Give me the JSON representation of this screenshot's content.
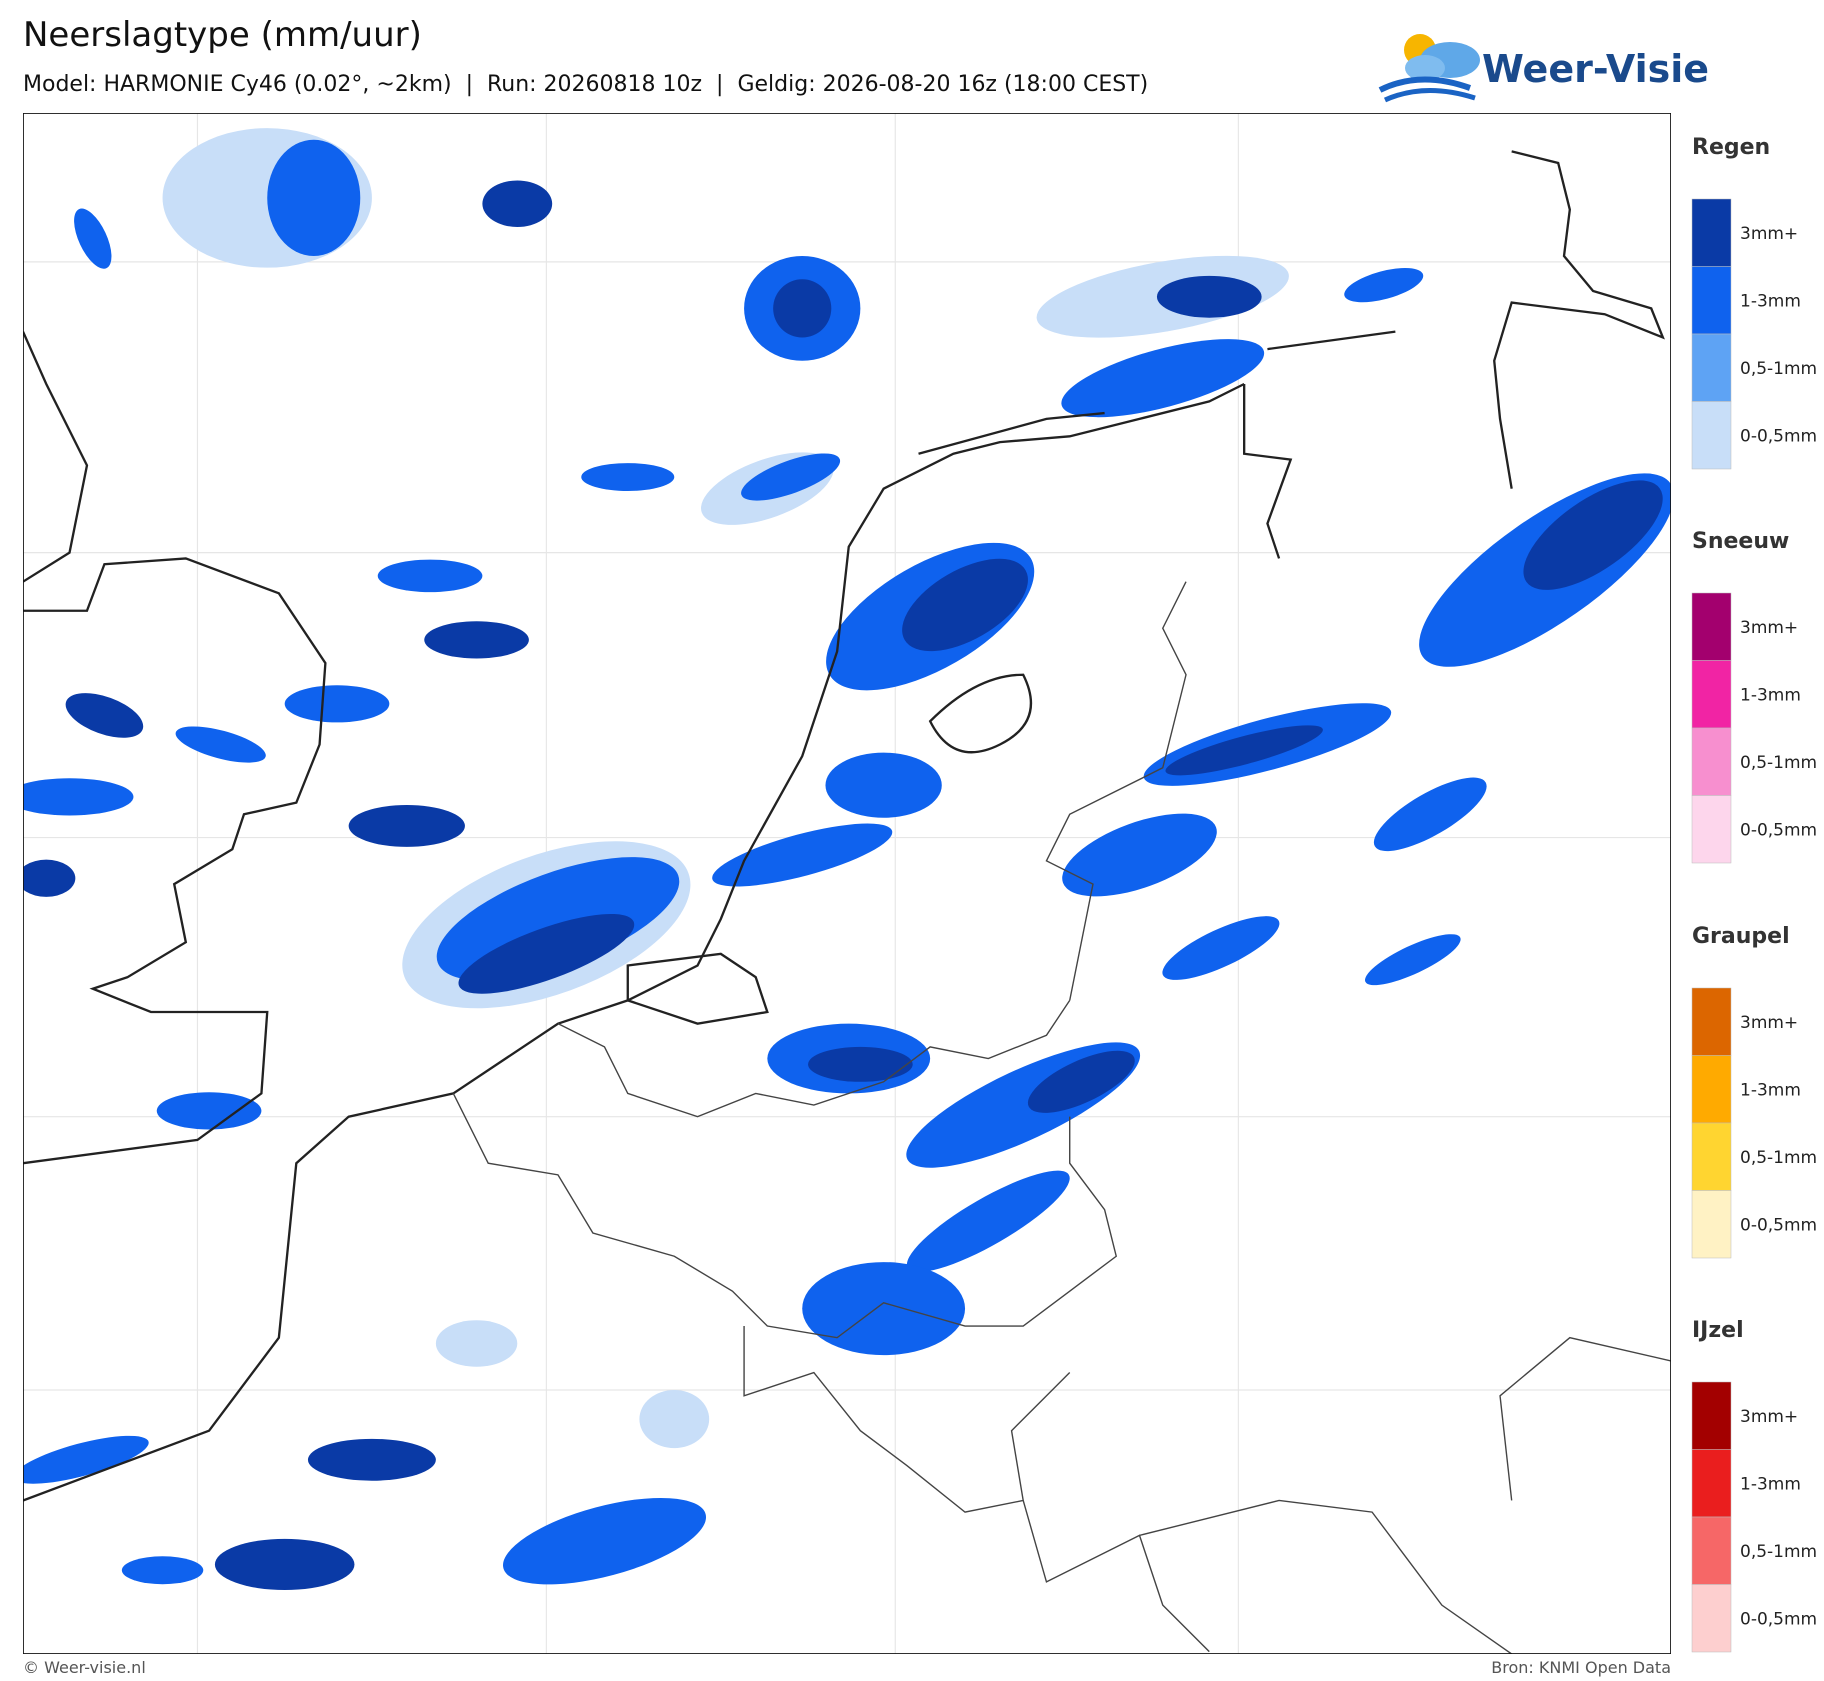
{
  "header": {
    "title": "Neerslagtype (mm/uur)",
    "subtitle": "Model: HARMONIE Cy46 (0.02°, ~2km)  |  Run: 20260818 10z  |  Geldig: 2026-08-20 16z (18:00 CEST)"
  },
  "logo": {
    "text": "Weer-Visie"
  },
  "legend": [
    {
      "title": "Regen",
      "items": [
        {
          "label": "3mm+",
          "color": "#0a3aa6"
        },
        {
          "label": "1-3mm",
          "color": "#0f62ee"
        },
        {
          "label": "0,5-1mm",
          "color": "#5ea3f4"
        },
        {
          "label": "0-0,5mm",
          "color": "#c8def8"
        }
      ]
    },
    {
      "title": "Sneeuw",
      "items": [
        {
          "label": "3mm+",
          "color": "#a3006e"
        },
        {
          "label": "1-3mm",
          "color": "#f124a4"
        },
        {
          "label": "0,5-1mm",
          "color": "#f78fcf"
        },
        {
          "label": "0-0,5mm",
          "color": "#fdd6ec"
        }
      ]
    },
    {
      "title": "Graupel",
      "items": [
        {
          "label": "3mm+",
          "color": "#dc6600"
        },
        {
          "label": "1-3mm",
          "color": "#ffaa00"
        },
        {
          "label": "0,5-1mm",
          "color": "#ffd530"
        },
        {
          "label": "0-0,5mm",
          "color": "#fff2c4"
        }
      ]
    },
    {
      "title": "IJzel",
      "items": [
        {
          "label": "3mm+",
          "color": "#a30000"
        },
        {
          "label": "1-3mm",
          "color": "#ea1e1e"
        },
        {
          "label": "0,5-1mm",
          "color": "#f66767"
        },
        {
          "label": "0-0,5mm",
          "color": "#fdcfcf"
        }
      ]
    }
  ],
  "footer": {
    "credit": "© Weer-visie.nl",
    "source": "Bron: KNMI Open Data"
  }
}
